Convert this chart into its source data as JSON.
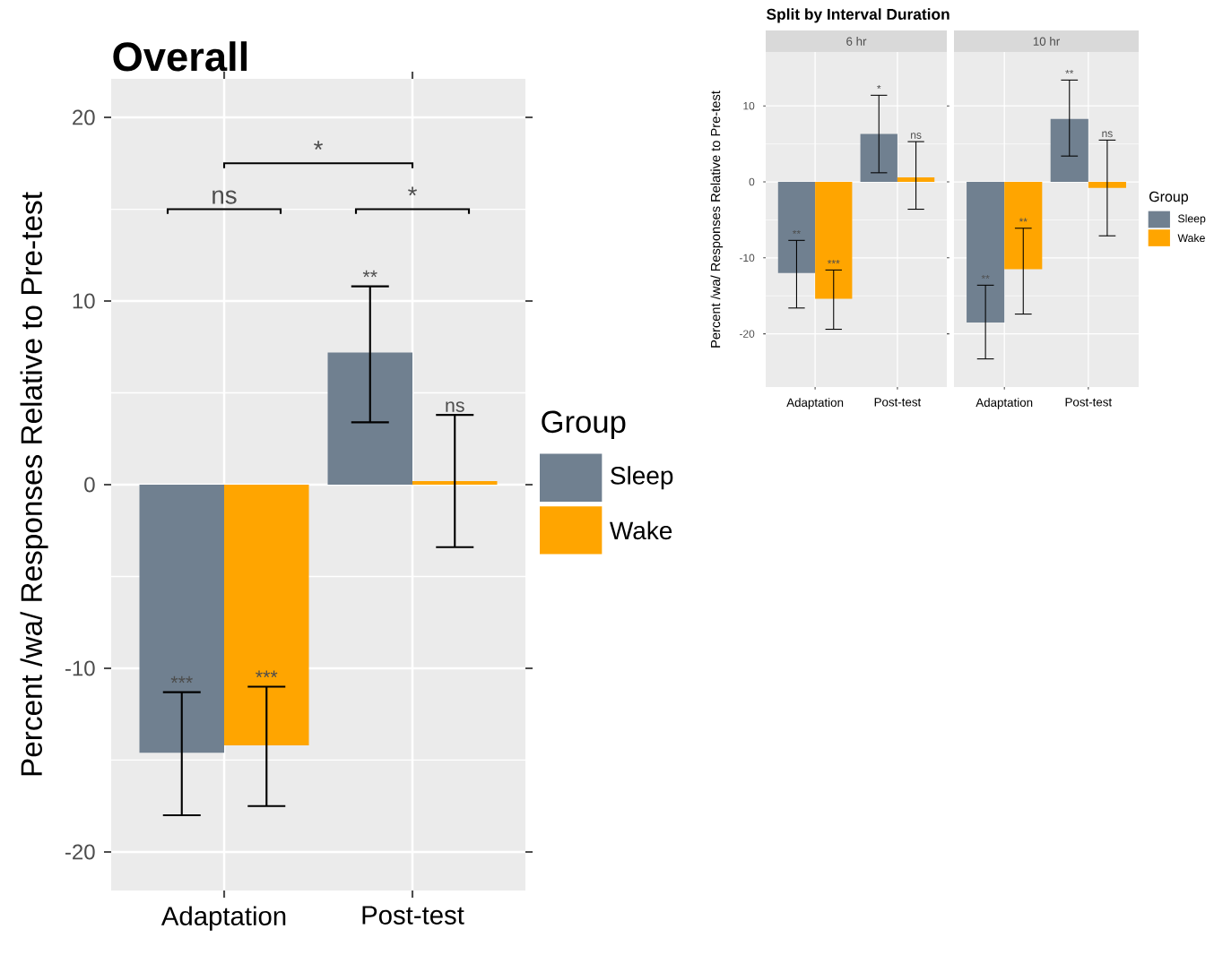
{
  "chart_data": [
    {
      "type": "bar",
      "title": "Overall",
      "ylabel": "Percent /wa/ Responses Relative to Pre-test",
      "categories": [
        "Adaptation",
        "Post-test"
      ],
      "legend": "right",
      "legend_title": "Group",
      "grid": true,
      "ylim": [
        -22.1,
        22.1
      ],
      "yticks": [
        -20,
        -10,
        0,
        10,
        20
      ],
      "series": [
        {
          "name": "Sleep",
          "color": "#708090",
          "values": [
            -14.6,
            7.2
          ],
          "errors": [
            [
              -18.0,
              -11.3
            ],
            [
              3.4,
              10.8
            ]
          ]
        },
        {
          "name": "Wake",
          "color": "#ffa500",
          "values": [
            -14.2,
            0.2
          ],
          "errors": [
            [
              -17.5,
              -11.0
            ],
            [
              -3.4,
              3.8
            ]
          ]
        }
      ],
      "annotations": [
        "ns",
        "*",
        "*",
        "***",
        "**",
        "***",
        "ns"
      ]
    },
    {
      "type": "bar",
      "title": "Split by Interval Duration",
      "subtitle": "6 hr",
      "ylabel": "Percent /wa/ Responses Relative to Pre-test",
      "categories": [
        "Adaptation",
        "Post-test"
      ],
      "legend": "right",
      "legend_title": "Group",
      "grid": true,
      "ylim": [
        -27,
        17.1
      ],
      "yticks": [
        -20,
        -10,
        0,
        10
      ],
      "series": [
        {
          "name": "Sleep",
          "color": "#708090",
          "values": [
            -12.0,
            6.3
          ],
          "errors": [
            [
              -16.6,
              -7.7
            ],
            [
              1.2,
              11.4
            ]
          ]
        },
        {
          "name": "Wake",
          "color": "#ffa500",
          "values": [
            -15.4,
            0.6
          ],
          "errors": [
            [
              -19.4,
              -11.6
            ],
            [
              -3.6,
              5.3
            ]
          ]
        }
      ],
      "annotations": [
        "**",
        "*",
        "***",
        "ns"
      ]
    },
    {
      "type": "bar",
      "subtitle": "10 hr",
      "categories": [
        "Adaptation",
        "Post-test"
      ],
      "grid": true,
      "ylim": [
        -27,
        17.1
      ],
      "yticks": [
        -20,
        -10,
        0,
        10
      ],
      "tick_labels": "x",
      "series": [
        {
          "color": "#708090",
          "values": [
            -18.5,
            8.3
          ],
          "errors": [
            [
              -23.3,
              -13.6
            ],
            [
              3.4,
              13.4
            ]
          ]
        },
        {
          "color": "#ffa500",
          "values": [
            -11.5,
            -0.8
          ],
          "errors": [
            [
              -17.4,
              -6.1
            ],
            [
              -7.1,
              5.5
            ]
          ]
        }
      ],
      "annotations": [
        "**",
        "**",
        "**",
        "ns"
      ]
    }
  ]
}
